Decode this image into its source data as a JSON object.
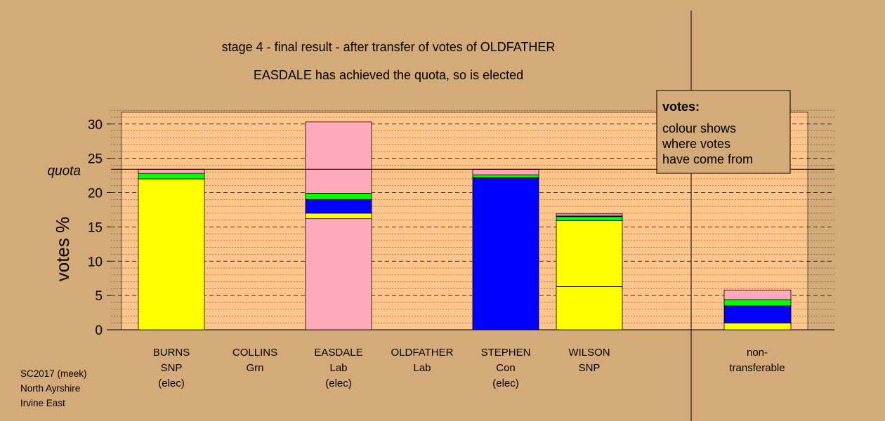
{
  "title": "stage 4 - final result - after transfer of votes of OLDFATHER",
  "subtitle": "EASDALE has achieved the quota, so is elected",
  "legend": {
    "heading": "votes:",
    "lines": [
      "colour shows",
      "where votes",
      "have come from"
    ]
  },
  "source": [
    "SC2017 (meek)",
    "North Ayrshire",
    "Irvine East"
  ],
  "colors": {
    "background": "#d4aa78",
    "plot_area": "#ffc58a",
    "SNP": "#ffff00",
    "Con": "#0000ff",
    "Grn": "#00ff00",
    "Lab": "#ffaabb"
  },
  "chart_data": {
    "type": "bar",
    "stacked": true,
    "ylabel": "votes %",
    "ylim": [
      0,
      32
    ],
    "yticks": [
      0,
      5,
      10,
      15,
      20,
      25,
      30
    ],
    "quota": 23.4,
    "quota_label": "quota",
    "grid": true,
    "legend_position": "top-right",
    "candidates": [
      {
        "name": "BURNS",
        "party": "SNP",
        "status": "(elec)",
        "segments": [
          {
            "source": "SNP",
            "value": 22.0
          },
          {
            "source": "Grn",
            "value": 0.8
          },
          {
            "source": "Lab",
            "value": 0.6
          }
        ]
      },
      {
        "name": "COLLINS",
        "party": "Grn",
        "status": "",
        "segments": []
      },
      {
        "name": "EASDALE",
        "party": "Lab",
        "status": "(elec)",
        "segments": [
          {
            "source": "Lab",
            "value": 16.2
          },
          {
            "source": "SNP",
            "value": 0.8
          },
          {
            "source": "Con",
            "value": 2.0
          },
          {
            "source": "Grn",
            "value": 0.9
          },
          {
            "source": "Lab",
            "value": 10.4
          }
        ]
      },
      {
        "name": "OLDFATHER",
        "party": "Lab",
        "status": "",
        "segments": []
      },
      {
        "name": "STEPHEN",
        "party": "Con",
        "status": "(elec)",
        "segments": [
          {
            "source": "Con",
            "value": 22.1
          },
          {
            "source": "SNP",
            "value": 0.1
          },
          {
            "source": "Grn",
            "value": 0.4
          },
          {
            "source": "Lab",
            "value": 0.8
          }
        ]
      },
      {
        "name": "WILSON",
        "party": "SNP",
        "status": "",
        "segments": [
          {
            "source": "SNP",
            "value": 6.3
          },
          {
            "source": "SNP",
            "value": 9.6
          },
          {
            "source": "Grn",
            "value": 0.6
          },
          {
            "source": "Con",
            "value": 0.1
          },
          {
            "source": "Lab",
            "value": 0.3
          }
        ]
      }
    ],
    "nontransferable": {
      "label_lines": [
        "non-",
        "transferable"
      ],
      "segments": [
        {
          "source": "SNP",
          "value": 1.0
        },
        {
          "source": "Con",
          "value": 2.5
        },
        {
          "source": "Grn",
          "value": 0.9
        },
        {
          "source": "Lab",
          "value": 1.4
        }
      ]
    }
  }
}
